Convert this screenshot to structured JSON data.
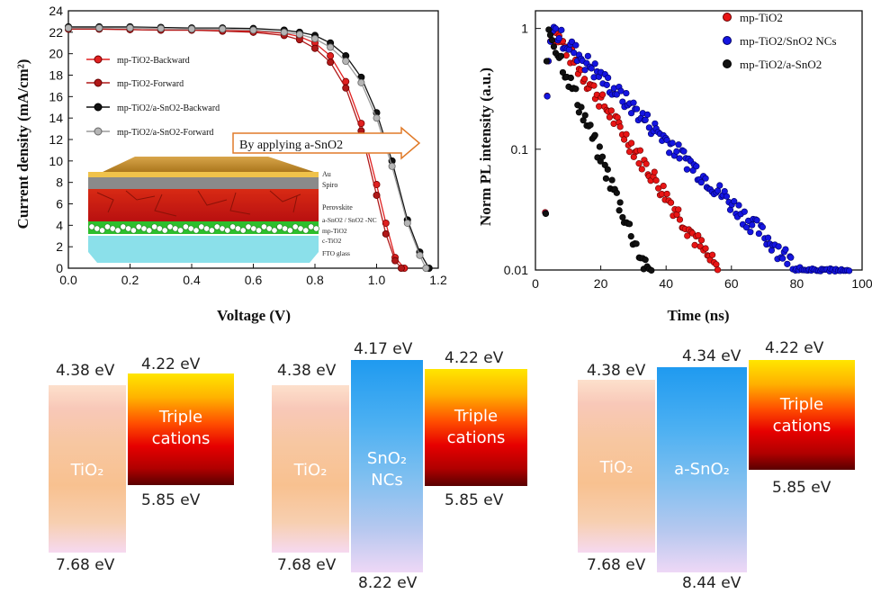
{
  "chart_data": [
    {
      "type": "line",
      "xlabel": "Voltage (V)",
      "ylabel": "Current density (mA/cm²)",
      "xlim": [
        0.0,
        1.2
      ],
      "ylim": [
        0,
        24
      ],
      "xticks": [
        "0.0",
        "0.2",
        "0.4",
        "0.6",
        "0.8",
        "1.0",
        "1.2"
      ],
      "yticks": [
        "0",
        "2",
        "4",
        "6",
        "8",
        "10",
        "12",
        "14",
        "16",
        "18",
        "20",
        "22",
        "24"
      ],
      "legend_position": "left",
      "series": [
        {
          "name": "mp-TiO2-Backward",
          "color": "#e02020",
          "x": [
            0.0,
            0.1,
            0.2,
            0.3,
            0.4,
            0.5,
            0.6,
            0.7,
            0.75,
            0.8,
            0.85,
            0.9,
            0.95,
            1.0,
            1.03,
            1.06,
            1.09
          ],
          "y": [
            22.3,
            22.3,
            22.25,
            22.2,
            22.2,
            22.15,
            22.1,
            21.9,
            21.6,
            21.0,
            19.8,
            17.4,
            13.5,
            7.8,
            4.2,
            1.0,
            0.0
          ]
        },
        {
          "name": "mp-TiO2-Forward",
          "color": "#b01818",
          "x": [
            0.0,
            0.1,
            0.2,
            0.3,
            0.4,
            0.5,
            0.6,
            0.7,
            0.75,
            0.8,
            0.85,
            0.9,
            0.95,
            1.0,
            1.03,
            1.06,
            1.08
          ],
          "y": [
            22.3,
            22.3,
            22.25,
            22.2,
            22.2,
            22.1,
            22.0,
            21.7,
            21.3,
            20.5,
            19.2,
            16.8,
            12.8,
            6.8,
            3.2,
            0.7,
            0.0
          ]
        },
        {
          "name": "mp-TiO2/a-SnO2-Backward",
          "color": "#111111",
          "x": [
            0.0,
            0.1,
            0.2,
            0.3,
            0.4,
            0.5,
            0.6,
            0.7,
            0.75,
            0.8,
            0.85,
            0.9,
            0.95,
            1.0,
            1.05,
            1.1,
            1.14,
            1.17
          ],
          "y": [
            22.5,
            22.5,
            22.5,
            22.45,
            22.4,
            22.4,
            22.35,
            22.2,
            22.0,
            21.7,
            21.0,
            19.8,
            17.8,
            14.5,
            10.0,
            4.5,
            1.5,
            0.0
          ]
        },
        {
          "name": "mp-TiO2/a-SnO2-Forward",
          "color": "#9a9a9a",
          "x": [
            0.0,
            0.1,
            0.2,
            0.3,
            0.4,
            0.5,
            0.6,
            0.7,
            0.75,
            0.8,
            0.85,
            0.9,
            0.95,
            1.0,
            1.05,
            1.1,
            1.14,
            1.16
          ],
          "y": [
            22.4,
            22.4,
            22.4,
            22.35,
            22.3,
            22.3,
            22.2,
            22.0,
            21.8,
            21.4,
            20.6,
            19.3,
            17.3,
            14.0,
            9.5,
            4.2,
            1.2,
            0.0
          ]
        }
      ],
      "annotation": "By applying a-SnO2",
      "inset_labels": [
        "Au",
        "Spiro",
        "Perovskite",
        "a-SnO2 / SnO2 -NC",
        "mp-TiO2",
        "c-TiO2",
        "FTO glass"
      ]
    },
    {
      "type": "scatter",
      "xlabel": "Time (ns)",
      "ylabel": "Norm PL intensity (a.u.)",
      "xlim": [
        0,
        100
      ],
      "ylim": [
        0.01,
        1.4
      ],
      "yscale": "log",
      "xticks": [
        "0",
        "20",
        "40",
        "60",
        "80",
        "100"
      ],
      "yticks": [
        "0.01",
        "0.1",
        "1"
      ],
      "legend_position": "top-right",
      "series": [
        {
          "name": "mp-TiO2",
          "color": "#e81515",
          "peak_time": 5,
          "decay_tau": 11.0,
          "end_time": 56
        },
        {
          "name": "mp-TiO2/SnO2 NCs",
          "color": "#1515e0",
          "peak_time": 5,
          "decay_tau": 16.5,
          "end_time": 96
        },
        {
          "name": "mp-TiO2/a-SnO2",
          "color": "#111111",
          "peak_time": 4,
          "decay_tau": 6.5,
          "end_time": 36
        }
      ]
    }
  ],
  "band_diagrams": [
    {
      "levels": {
        "tio2_cb": "4.38 eV",
        "tio2_vb": "7.68 eV",
        "pvk_cb": "4.22 eV",
        "pvk_vb": "5.85 eV"
      },
      "labels": {
        "tio2": "TiO₂",
        "pvk": [
          "Triple",
          "cations"
        ]
      }
    },
    {
      "levels": {
        "tio2_cb": "4.38 eV",
        "tio2_vb": "7.68 eV",
        "mid_cb": "4.17 eV",
        "mid_vb": "8.22 eV",
        "pvk_cb": "4.22 eV",
        "pvk_vb": "5.85 eV"
      },
      "labels": {
        "tio2": "TiO₂",
        "mid": [
          "SnO₂",
          "NCs"
        ],
        "pvk": [
          "Triple",
          "cations"
        ]
      }
    },
    {
      "levels": {
        "tio2_cb": "4.38 eV",
        "tio2_vb": "7.68 eV",
        "mid_cb": "4.34 eV",
        "mid_vb": "8.44 eV",
        "pvk_cb": "4.22 eV",
        "pvk_vb": "5.85 eV"
      },
      "labels": {
        "tio2": "TiO₂",
        "mid": [
          "a-SnO₂"
        ],
        "pvk": [
          "Triple",
          "cations"
        ]
      }
    }
  ]
}
